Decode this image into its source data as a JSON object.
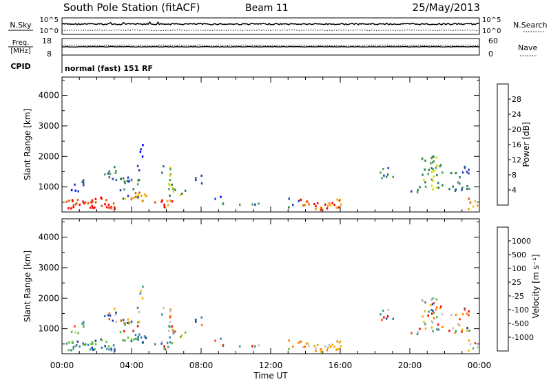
{
  "header": {
    "station": "South Pole Station (fitACF)",
    "beam": "Beam 11",
    "date": "25/May/2013"
  },
  "panel_labels": {
    "nsky": "N.Sky",
    "nsearch": "N.Search",
    "freq_line1": "Freq.",
    "freq_line2": "[MHz]",
    "nave": "Nave",
    "cpid": "CPID",
    "cpid_value": "normal (fast) 151 RF",
    "ticks_top_left": [
      "10^5",
      "10^0"
    ],
    "ticks_top_right": [
      "10^5",
      "10^0"
    ],
    "ticks_freq_left": [
      "18",
      "8"
    ],
    "ticks_freq_right": [
      "60",
      "0"
    ]
  },
  "chart_data": [
    {
      "type": "heatmap",
      "id": "power",
      "ylabel": "Slant Range [km]",
      "y_ticks": [
        "1000",
        "2000",
        "3000",
        "4000"
      ],
      "ylim": [
        180,
        4600
      ],
      "colorbar_label": "Power [dB]",
      "colorbar_ticks": [
        "28",
        "24",
        "20",
        "16",
        "12",
        "8",
        "4"
      ],
      "colors": [
        "#0000ff",
        "#1f3fbf",
        "#2a7a58",
        "#4aa050",
        "#d8d800",
        "#f0a000",
        "#e05a00",
        "#ff0000"
      ]
    },
    {
      "type": "heatmap",
      "id": "velocity",
      "ylabel": "Slant Range [km]",
      "y_ticks": [
        "1000",
        "2000",
        "3000",
        "4000"
      ],
      "ylim": [
        180,
        4600
      ],
      "colorbar_label": "Velocity [m s⁻¹]",
      "colorbar_ticks": [
        "1000",
        "500",
        "100",
        "25",
        "-25",
        "-100",
        "-500",
        "-1000"
      ],
      "colors": [
        "#2040a0",
        "#3a7ab0",
        "#3a9a80",
        "#60c030",
        "#c0c0c0",
        "#f0b000",
        "#ff8000",
        "#ff4000",
        "#ff0000"
      ]
    }
  ],
  "x_axis": {
    "label": "Time UT",
    "ticks": [
      "00:00",
      "04:00",
      "08:00",
      "12:00",
      "16:00",
      "20:00",
      "00:00"
    ]
  }
}
